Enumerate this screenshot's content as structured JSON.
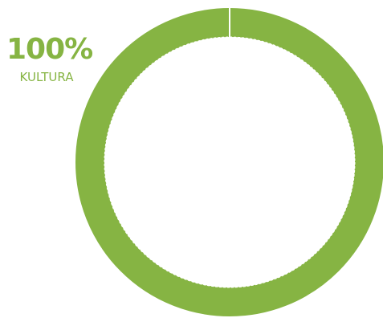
{
  "chart_data": {
    "type": "pie",
    "categories": [
      "KULTURA"
    ],
    "values": [
      100
    ],
    "value_labels": [
      "100%"
    ],
    "donut": true,
    "legend_position": "top-left",
    "colors": [
      "#86b443"
    ],
    "slice_border_color": "#ffffff"
  }
}
